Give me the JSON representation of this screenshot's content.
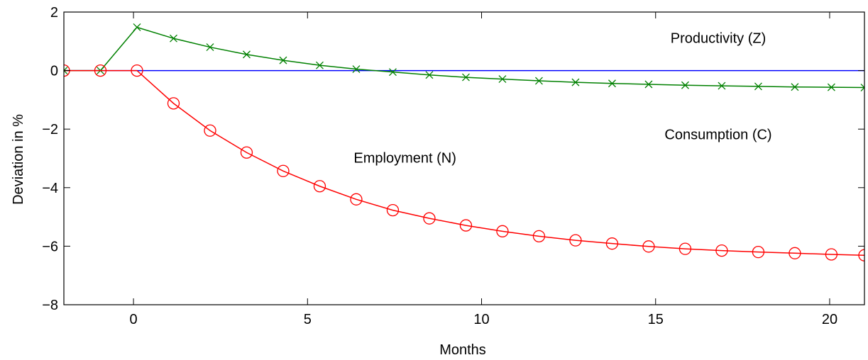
{
  "chart_data": {
    "type": "line",
    "xlabel": "Months",
    "ylabel": "Deviation in %",
    "xlim": [
      -2,
      21
    ],
    "ylim": [
      -8,
      2
    ],
    "xticks": [
      0,
      5,
      10,
      15,
      20
    ],
    "yticks": [
      2,
      0,
      -2,
      -4,
      -6,
      -8
    ],
    "xtick_labels": [
      "0",
      "5",
      "10",
      "15",
      "20"
    ],
    "ytick_labels": [
      "2",
      "0",
      "−2",
      "−4",
      "−6",
      "−8"
    ],
    "grid": false,
    "annotations": [
      {
        "text": "Productivity (Z)",
        "x": 16.8,
        "y": 0.95
      },
      {
        "text": "Consumption (C)",
        "x": 16.8,
        "y": -2.35
      },
      {
        "text": "Employment (N)",
        "x": 7.8,
        "y": -3.15
      }
    ],
    "series": [
      {
        "name": "Productivity (Z)",
        "color": "#0000ff",
        "marker": "none",
        "x": [
          -2,
          21
        ],
        "y": [
          0,
          0
        ]
      },
      {
        "name": "Consumption (C)",
        "color": "#008000",
        "marker": "x",
        "x": [
          -2.0,
          -0.95,
          0.1,
          1.15,
          2.2,
          3.25,
          4.3,
          5.35,
          6.4,
          7.45,
          8.5,
          9.55,
          10.6,
          11.65,
          12.7,
          13.75,
          14.8,
          15.85,
          16.9,
          17.95,
          19.0,
          20.05,
          21.0
        ],
        "y": [
          0,
          0,
          1.48,
          1.1,
          0.8,
          0.55,
          0.35,
          0.18,
          0.05,
          -0.05,
          -0.15,
          -0.23,
          -0.29,
          -0.35,
          -0.4,
          -0.44,
          -0.47,
          -0.5,
          -0.52,
          -0.54,
          -0.56,
          -0.57,
          -0.58
        ]
      },
      {
        "name": "Employment (N)",
        "color": "#ff0000",
        "marker": "o",
        "x": [
          -2.0,
          -0.95,
          0.1,
          1.15,
          2.2,
          3.25,
          4.3,
          5.35,
          6.4,
          7.45,
          8.5,
          9.55,
          10.6,
          11.65,
          12.7,
          13.75,
          14.8,
          15.85,
          16.9,
          17.95,
          19.0,
          20.05,
          21.0
        ],
        "y": [
          0,
          0,
          0,
          -1.12,
          -2.05,
          -2.8,
          -3.43,
          -3.95,
          -4.4,
          -4.77,
          -5.05,
          -5.29,
          -5.49,
          -5.66,
          -5.8,
          -5.91,
          -6.01,
          -6.09,
          -6.15,
          -6.2,
          -6.24,
          -6.28,
          -6.31
        ]
      }
    ]
  }
}
